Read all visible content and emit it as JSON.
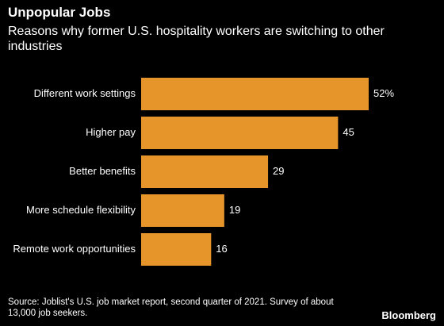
{
  "header": {
    "title": "Unpopular Jobs",
    "subtitle": "Reasons why former U.S. hospitality workers are switching to other industries"
  },
  "footer": {
    "source": "Source: Joblist's U.S. job market report, second quarter of 2021. Survey of about 13,000 job seekers.",
    "brand": "Bloomberg"
  },
  "colors": {
    "background": "#000000",
    "bar": "#E6952A",
    "text": "#ffffff"
  },
  "chart_data": {
    "type": "bar",
    "orientation": "horizontal",
    "title": "Unpopular Jobs",
    "subtitle": "Reasons why former U.S. hospitality workers are switching to other industries",
    "categories": [
      "Different work settings",
      "Higher pay",
      "Better benefits",
      "More schedule flexibility",
      "Remote work opportunities"
    ],
    "values": [
      52,
      45,
      29,
      19,
      16
    ],
    "value_labels": [
      "52%",
      "45",
      "29",
      "19",
      "16"
    ],
    "xlim": [
      0,
      52
    ],
    "grid": false,
    "legend": "none"
  }
}
